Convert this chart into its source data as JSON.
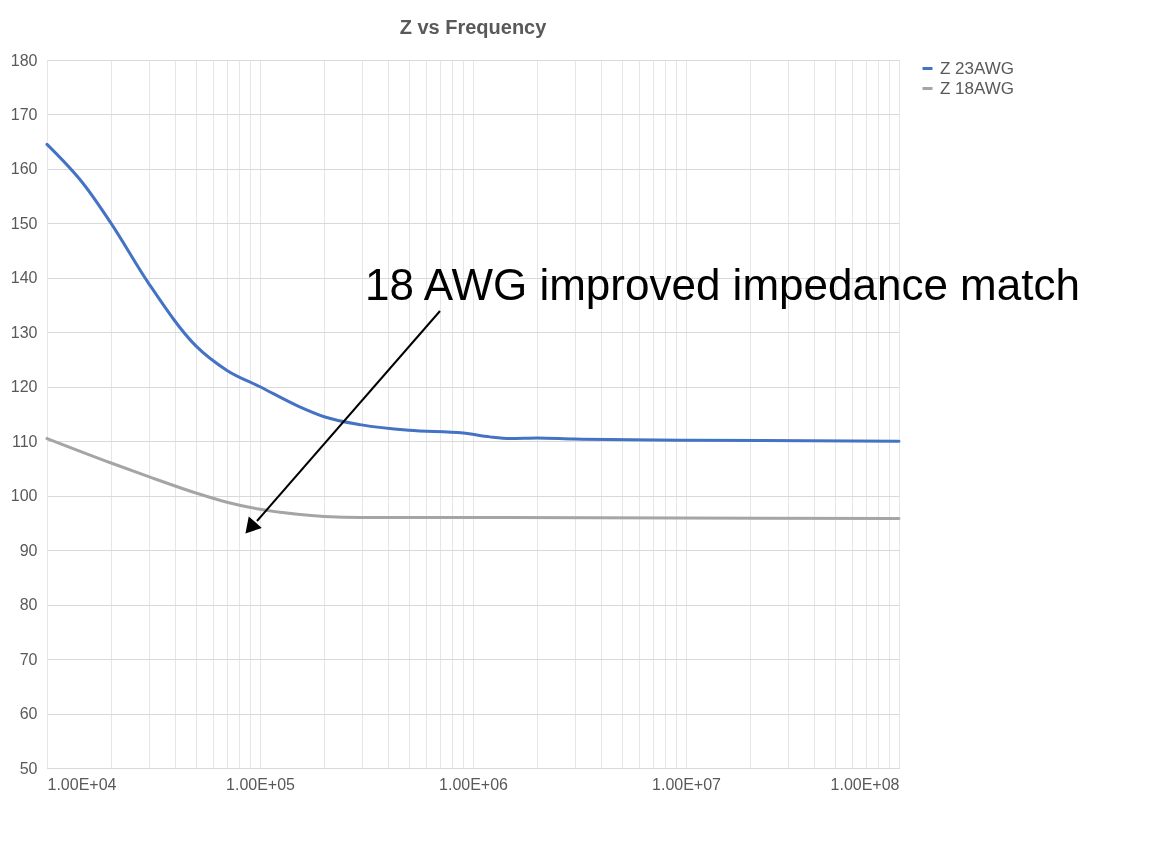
{
  "chart_data": {
    "type": "line",
    "title": "Z vs Frequency",
    "annotations": [
      "18 AWG improved impedance match"
    ],
    "series": [
      {
        "name": "Z 23AWG",
        "color": "#4472c4",
        "x": [
          10000,
          15000,
          20000,
          30000,
          50000,
          70000,
          100000,
          150000,
          200000,
          300000,
          500000,
          900000,
          1200000,
          1500000,
          2000000,
          3000000,
          10000000,
          100000000
        ],
        "values": [
          164.5,
          157,
          150,
          139,
          127.5,
          123,
          120,
          116.5,
          114.5,
          113,
          112,
          111.5,
          110.8,
          110.5,
          110.6,
          110.4,
          110.2,
          110
        ]
      },
      {
        "name": "Z 18AWG",
        "color": "#a5a5a5",
        "x": [
          10000,
          20000,
          30000,
          50000,
          70000,
          100000,
          150000,
          200000,
          300000,
          1000000,
          100000000
        ],
        "values": [
          110.5,
          106,
          103.5,
          100.5,
          98.8,
          97.5,
          96.6,
          96.2,
          96,
          96,
          95.8
        ]
      }
    ],
    "log": "x",
    "xlim": [
      10000,
      100000000
    ],
    "xticks": [
      {
        "value": 10000,
        "label": "1.00E+04"
      },
      {
        "value": 20000,
        "label": null
      },
      {
        "value": 30000,
        "label": null
      },
      {
        "value": 40000,
        "label": null
      },
      {
        "value": 50000,
        "label": null
      },
      {
        "value": 60000,
        "label": null
      },
      {
        "value": 70000,
        "label": null
      },
      {
        "value": 80000,
        "label": null
      },
      {
        "value": 90000,
        "label": null
      },
      {
        "value": 100000,
        "label": "1.00E+05"
      },
      {
        "value": 200000,
        "label": null
      },
      {
        "value": 300000,
        "label": null
      },
      {
        "value": 400000,
        "label": null
      },
      {
        "value": 500000,
        "label": null
      },
      {
        "value": 600000,
        "label": null
      },
      {
        "value": 700000,
        "label": null
      },
      {
        "value": 800000,
        "label": null
      },
      {
        "value": 900000,
        "label": null
      },
      {
        "value": 1000000,
        "label": "1.00E+06"
      },
      {
        "value": 2000000,
        "label": null
      },
      {
        "value": 3000000,
        "label": null
      },
      {
        "value": 4000000,
        "label": null
      },
      {
        "value": 5000000,
        "label": null
      },
      {
        "value": 6000000,
        "label": null
      },
      {
        "value": 7000000,
        "label": null
      },
      {
        "value": 8000000,
        "label": null
      },
      {
        "value": 9000000,
        "label": null
      },
      {
        "value": 10000000,
        "label": "1.00E+07"
      },
      {
        "value": 20000000,
        "label": null
      },
      {
        "value": 30000000,
        "label": null
      },
      {
        "value": 40000000,
        "label": null
      },
      {
        "value": 50000000,
        "label": null
      },
      {
        "value": 60000000,
        "label": null
      },
      {
        "value": 70000000,
        "label": null
      },
      {
        "value": 80000000,
        "label": null
      },
      {
        "value": 90000000,
        "label": null
      },
      {
        "value": 100000000,
        "label": "1.00E+08"
      }
    ],
    "ylim": [
      50,
      180
    ],
    "yticks": [
      50,
      60,
      70,
      80,
      90,
      100,
      110,
      120,
      130,
      140,
      150,
      160,
      170,
      180
    ],
    "grid": true,
    "legend": "right",
    "line_style": "solid",
    "marker": "none"
  }
}
